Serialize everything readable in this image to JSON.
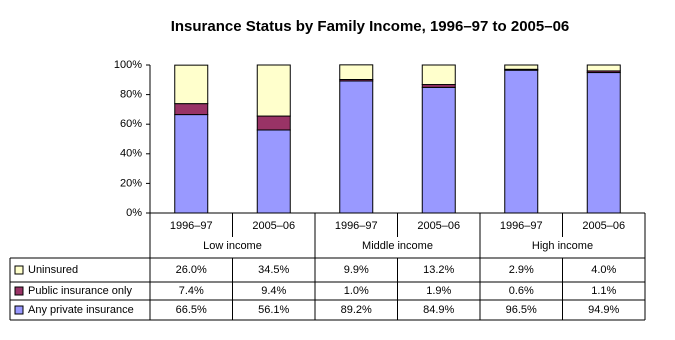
{
  "chart_data": {
    "type": "stacked-bar",
    "title": "Insurance Status by Family Income, 1996–97 to 2005–06",
    "categories": [
      "1996–97",
      "2005–06",
      "1996–97",
      "2005–06",
      "1996–97",
      "2005–06"
    ],
    "groups": [
      "Low income",
      "Middle income",
      "High income"
    ],
    "series": [
      {
        "name": "Uninsured",
        "color": "#ffffcc",
        "values": [
          26.0,
          34.5,
          9.9,
          13.2,
          2.9,
          4.0
        ],
        "value_labels": [
          "26.0%",
          "34.5%",
          "9.9%",
          "13.2%",
          "2.9%",
          "4.0%"
        ]
      },
      {
        "name": "Public insurance only",
        "color": "#993366",
        "values": [
          7.4,
          9.4,
          1.0,
          1.9,
          0.6,
          1.1
        ],
        "value_labels": [
          "7.4%",
          "9.4%",
          "1.0%",
          "1.9%",
          "0.6%",
          "1.1%"
        ]
      },
      {
        "name": "Any private insurance",
        "color": "#9999ff",
        "values": [
          66.5,
          56.1,
          89.2,
          84.9,
          96.5,
          94.9
        ],
        "value_labels": [
          "66.5%",
          "56.1%",
          "89.2%",
          "84.9%",
          "96.5%",
          "94.9%"
        ]
      }
    ],
    "ylim": [
      0,
      100
    ],
    "yticks": [
      {
        "value": 0,
        "label": "0%"
      },
      {
        "value": 20,
        "label": "20%"
      },
      {
        "value": 40,
        "label": "40%"
      },
      {
        "value": 60,
        "label": "60%"
      },
      {
        "value": 80,
        "label": "80%"
      },
      {
        "value": 100,
        "label": "100%"
      }
    ]
  }
}
